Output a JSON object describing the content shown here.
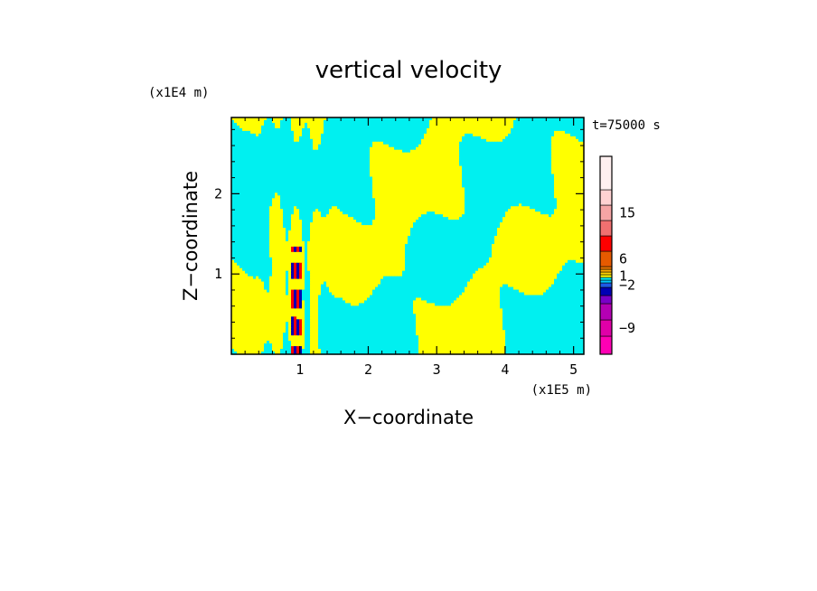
{
  "chart_data": {
    "type": "heatmap",
    "title": "vertical velocity",
    "xlabel": "X−coordinate",
    "ylabel": "Z−coordinate",
    "x_unit": "(x1E5 m)",
    "y_unit": "(x1E4 m)",
    "time_label": "t=75000 s",
    "xlim": [
      0,
      5.15
    ],
    "ylim": [
      0,
      2.95
    ],
    "x_ticks": [
      "1",
      "2",
      "3",
      "4",
      "5"
    ],
    "y_ticks": [
      "1",
      "2"
    ],
    "colorbar": {
      "levels": [
        {
          "color": "#ff00b4"
        },
        {
          "color": "#e000a8"
        },
        {
          "color": "#b400b4"
        },
        {
          "color": "#7a00c8"
        },
        {
          "color": "#0000b4"
        },
        {
          "color": "#1e5ae6"
        },
        {
          "color": "#00c8ff"
        },
        {
          "color": "#00f0f0"
        },
        {
          "color": "#ffff00"
        },
        {
          "color": "#ffd200"
        },
        {
          "color": "#ffaa00"
        },
        {
          "color": "#f07800"
        },
        {
          "color": "#e65a00"
        },
        {
          "color": "#ff0000"
        },
        {
          "color": "#f07070"
        },
        {
          "color": "#f5a5a5"
        },
        {
          "color": "#ffd2d2"
        },
        {
          "color": "#fff0f0"
        }
      ],
      "tick_labels": [
        "-9",
        "-2",
        "1",
        "6",
        "15"
      ]
    },
    "colors": {
      "positive": "#ffff00",
      "negative": "#00f0f0",
      "strong_positive": "#ff0000",
      "strong_negative": "#0000b4"
    }
  }
}
